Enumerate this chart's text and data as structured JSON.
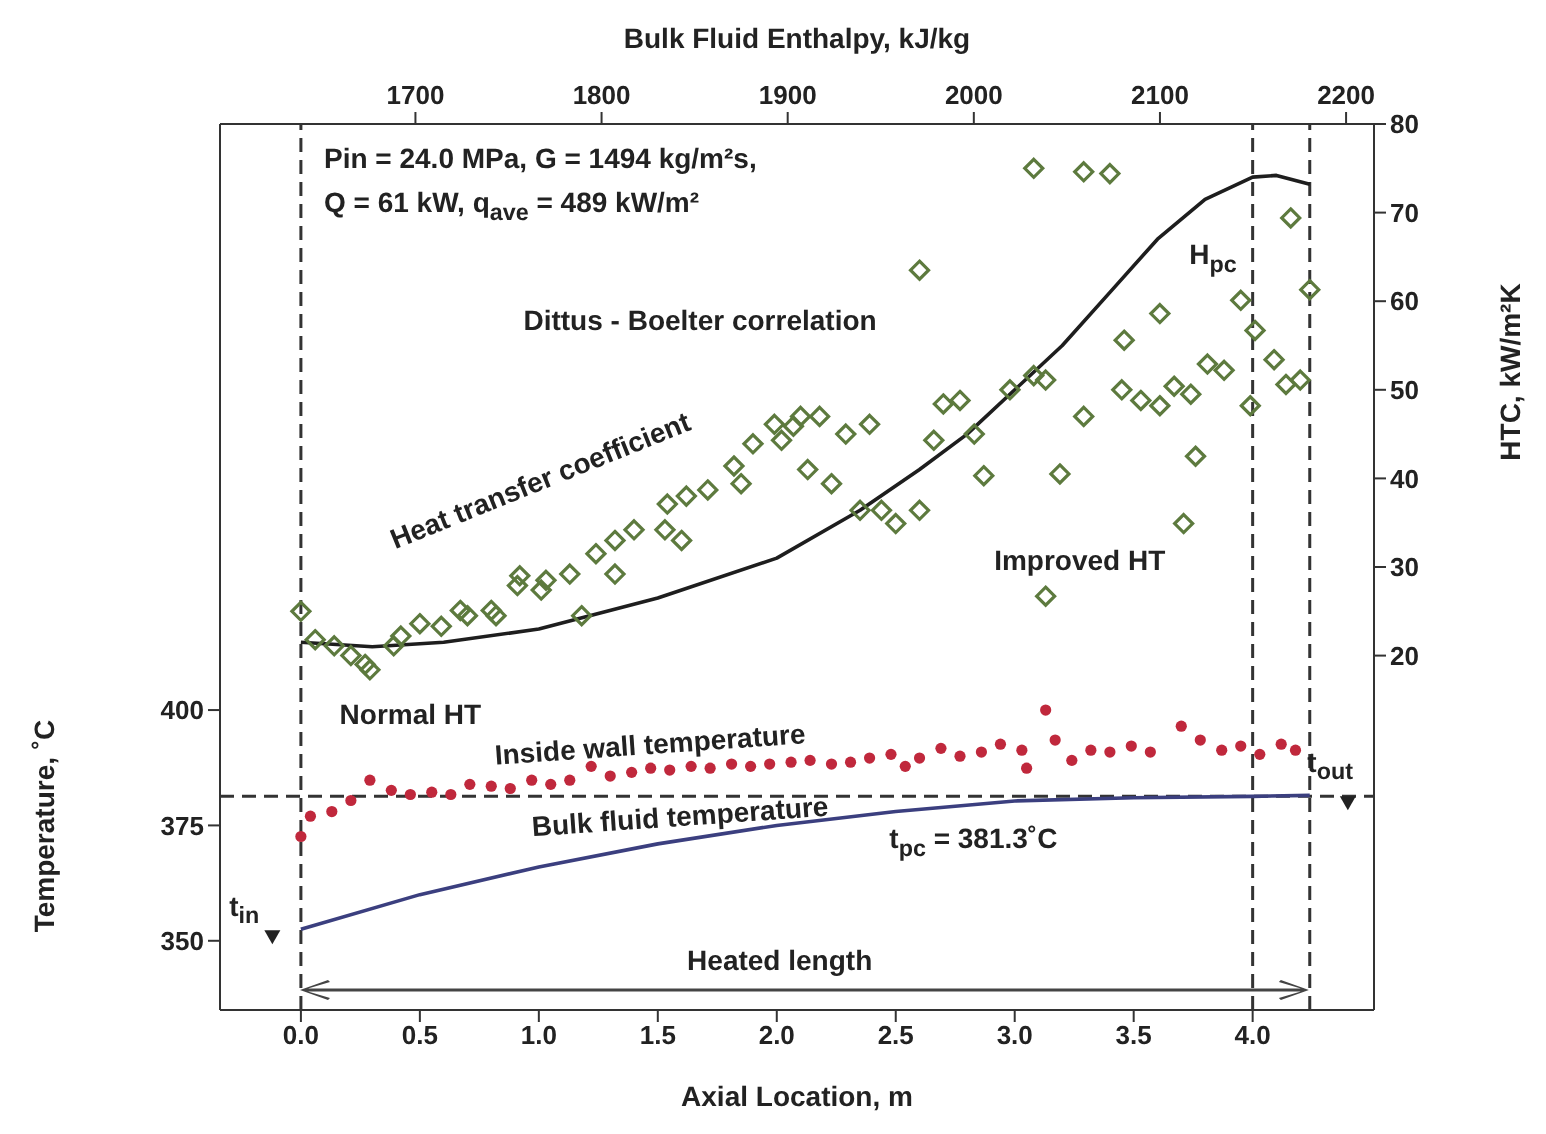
{
  "chart_data": {
    "type": "scatter",
    "xlabel": "Axial Location, m",
    "ylabel": "Temperature, ˚C",
    "y2label": "HTC, kW/m²K",
    "x2label": "Bulk Fluid Enthalpy, kJ/kg",
    "xlim": [
      -0.34,
      4.51
    ],
    "xticks": [
      {
        "value": 0,
        "label": "0.0"
      },
      0.5,
      {
        "value": 1,
        "label": "1.0"
      },
      1.5,
      {
        "value": 2,
        "label": "2.0"
      },
      2.5,
      {
        "value": 3,
        "label": "3.0"
      },
      3.5,
      {
        "value": 4,
        "label": "4.0"
      }
    ],
    "ylim": [
      335,
      527
    ],
    "yticks": [
      350,
      375,
      400
    ],
    "y2lim": [
      -20,
      80
    ],
    "y2ticks": [
      20,
      30,
      40,
      50,
      60,
      70,
      80
    ],
    "x2lim": [
      1595,
      2215
    ],
    "x2ticks": [
      1700,
      1800,
      1900,
      2000,
      2100,
      2200
    ],
    "series": [
      {
        "axis": "y2",
        "marker": "diamond",
        "color": "#5d7a3e",
        "x": [
          0,
          0.06,
          0.14,
          0.21,
          0.27,
          0.29,
          0.39,
          0.42,
          0.5,
          0.59,
          0.67,
          0.7,
          0.8,
          0.82,
          0.91,
          0.92,
          1.01,
          1.03,
          1.13,
          1.18,
          1.24,
          1.32,
          1.32,
          1.4,
          1.53,
          1.54,
          1.6,
          1.62,
          1.71,
          1.82,
          1.85,
          1.9,
          1.99,
          2.02,
          2.07,
          2.1,
          2.13,
          2.18,
          2.23,
          2.29,
          2.35,
          2.39,
          2.44,
          2.5,
          2.6,
          2.6,
          2.66,
          2.7,
          2.77,
          2.83,
          2.87,
          2.98,
          3.08,
          3.08,
          3.13,
          3.13,
          3.19,
          3.29,
          3.29,
          3.4,
          3.45,
          3.46,
          3.53,
          3.61,
          3.61,
          3.67,
          3.71,
          3.74,
          3.76,
          3.81,
          3.88,
          3.95,
          3.99,
          4.01,
          4.09,
          4.14,
          4.16,
          4.2,
          4.24
        ],
        "values": [
          25,
          21.8,
          21.1,
          20,
          19,
          18.4,
          21.1,
          22.2,
          23.6,
          23.3,
          25.1,
          24.5,
          25.1,
          24.5,
          27.9,
          29,
          27.4,
          28.5,
          29.2,
          24.5,
          31.5,
          29.2,
          33,
          34.2,
          34.2,
          37.1,
          33,
          38,
          38.7,
          41.4,
          39.4,
          43.9,
          46.1,
          44.3,
          45.9,
          47,
          41,
          47,
          39.4,
          45,
          36.4,
          46.1,
          36.4,
          34.9,
          36.4,
          63.5,
          44.3,
          48.4,
          48.8,
          45,
          40.3,
          50,
          51.6,
          75,
          26.7,
          51.1,
          40.5,
          47,
          74.6,
          74.4,
          50,
          55.6,
          48.8,
          48.2,
          58.6,
          50.4,
          34.9,
          49.5,
          42.5,
          52.9,
          52.2,
          60.1,
          48.2,
          56.7,
          53.4,
          50.6,
          69.4,
          51.1,
          61.3
        ]
      },
      {
        "type": "line",
        "axis": "y2",
        "marker": "none",
        "color": "#1e1e1e",
        "x": [
          0,
          0.3,
          0.6,
          1.0,
          1.5,
          2.0,
          2.35,
          2.6,
          2.8,
          3.0,
          3.2,
          3.4,
          3.6,
          3.8,
          4.0,
          4.1,
          4.24
        ],
        "values": [
          21.5,
          21,
          21.5,
          23,
          26.5,
          31,
          36.4,
          41,
          45,
          50,
          55,
          61,
          67,
          71.5,
          74,
          74.2,
          73.2
        ]
      },
      {
        "marker": "circle",
        "color": "#c0283c",
        "x": [
          0,
          0.04,
          0.13,
          0.21,
          0.29,
          0.38,
          0.46,
          0.55,
          0.63,
          0.71,
          0.8,
          0.88,
          0.97,
          1.05,
          1.13,
          1.22,
          1.3,
          1.39,
          1.47,
          1.55,
          1.64,
          1.72,
          1.81,
          1.89,
          1.97,
          2.06,
          2.14,
          2.23,
          2.31,
          2.39,
          2.48,
          2.54,
          2.6,
          2.69,
          2.77,
          2.86,
          2.94,
          3.03,
          3.05,
          3.13,
          3.17,
          3.24,
          3.32,
          3.4,
          3.49,
          3.57,
          3.7,
          3.78,
          3.87,
          3.95,
          4.03,
          4.12,
          4.18
        ],
        "values": [
          372.6,
          377,
          378,
          380.4,
          384.8,
          382.6,
          381.7,
          382.2,
          381.7,
          383.9,
          383.5,
          383,
          384.8,
          383.9,
          384.8,
          387.8,
          385.7,
          386.5,
          387.4,
          387,
          387.8,
          387.4,
          388.3,
          387.8,
          388.3,
          388.7,
          389.1,
          388.3,
          388.7,
          389.6,
          390.4,
          387.8,
          389.6,
          391.7,
          390,
          390.9,
          392.6,
          391.3,
          387.4,
          400,
          393.5,
          389.1,
          391.3,
          390.9,
          392.2,
          390.9,
          396.5,
          393.5,
          391.3,
          392.2,
          390.4,
          392.6,
          391.3
        ]
      },
      {
        "type": "line",
        "marker": "none",
        "color": "#3b3f7f",
        "x": [
          0,
          0.5,
          1.0,
          1.5,
          2.0,
          2.5,
          3.0,
          3.5,
          4.0,
          4.24
        ],
        "values": [
          352.5,
          360,
          366,
          371,
          375,
          378,
          380.3,
          381,
          381.3,
          381.5
        ]
      },
      {
        "marker": "triangle",
        "color": "#222222",
        "x": [
          -0.12,
          4.4
        ],
        "values": [
          351,
          380
        ]
      }
    ],
    "ref_lines": [
      {
        "axis": "x",
        "value": 0,
        "color": "#333333",
        "line_style": "dashed"
      },
      {
        "axis": "x",
        "value": 4.0,
        "label": "H$_{pc}$",
        "color": "#333333",
        "line_style": "dashed"
      },
      {
        "axis": "x",
        "value": 4.24,
        "color": "#333333",
        "line_style": "dashed"
      },
      {
        "axis": "y",
        "value": 381.3,
        "label": "t$_{pc}$ = 381.3˚C",
        "color": "#333333",
        "line_style": "dashed"
      }
    ],
    "annotations": [
      "Pin = 24.0 MPa, G = 1494 kg/m²s,",
      "Q = 61 kW, q$_{ave}$ = 489 kW/m²",
      "Dittus - Boelter correlation",
      "Heat transfer coefficient",
      "Improved HT",
      "Normal HT",
      "Inside wall temperature",
      "Bulk fluid temperature",
      "t$_{in}$",
      "t$_{out}$",
      "Heated length"
    ]
  }
}
